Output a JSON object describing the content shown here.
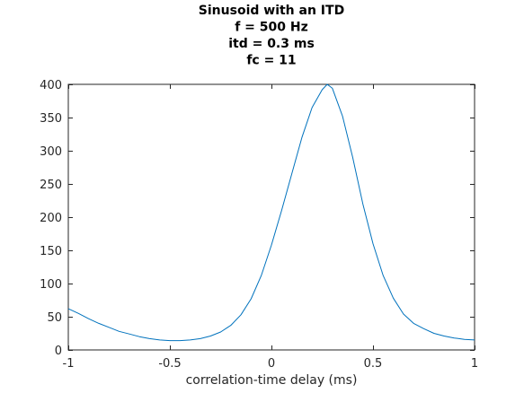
{
  "chart_data": {
    "type": "line",
    "title_lines": [
      "Sinusoid with an ITD",
      "f = 500 Hz",
      "itd = 0.3 ms",
      "fc = 11"
    ],
    "xlabel": "correlation-time delay (ms)",
    "ylabel": "",
    "xlim": [
      -1,
      1
    ],
    "ylim": [
      0,
      400
    ],
    "x_ticks": [
      -1,
      -0.5,
      0,
      0.5,
      1
    ],
    "x_tick_labels": [
      "-1",
      "-0.5",
      "0",
      "0.5",
      "1"
    ],
    "y_ticks": [
      0,
      50,
      100,
      150,
      200,
      250,
      300,
      350,
      400
    ],
    "y_tick_labels": [
      "0",
      "50",
      "100",
      "150",
      "200",
      "250",
      "300",
      "350",
      "400"
    ],
    "grid": false,
    "line_color": "#0072BD",
    "series": [
      {
        "x": [
          -1.0,
          -0.95,
          -0.9,
          -0.85,
          -0.8,
          -0.75,
          -0.7,
          -0.65,
          -0.6,
          -0.55,
          -0.5,
          -0.45,
          -0.4,
          -0.35,
          -0.3,
          -0.25,
          -0.2,
          -0.15,
          -0.1,
          -0.05,
          0.0,
          0.05,
          0.1,
          0.15,
          0.2,
          0.25,
          0.275,
          0.3,
          0.35,
          0.4,
          0.45,
          0.5,
          0.55,
          0.6,
          0.65,
          0.7,
          0.75,
          0.8,
          0.85,
          0.9,
          0.95,
          1.0
        ],
        "y": [
          62,
          55,
          47,
          40,
          34,
          28,
          24,
          20,
          17,
          15,
          14,
          14,
          15,
          17,
          21,
          27,
          37,
          53,
          77,
          112,
          158,
          210,
          265,
          320,
          365,
          392,
          400,
          394,
          352,
          290,
          220,
          160,
          112,
          78,
          54,
          40,
          32,
          25,
          21,
          18,
          16,
          15
        ]
      }
    ]
  }
}
